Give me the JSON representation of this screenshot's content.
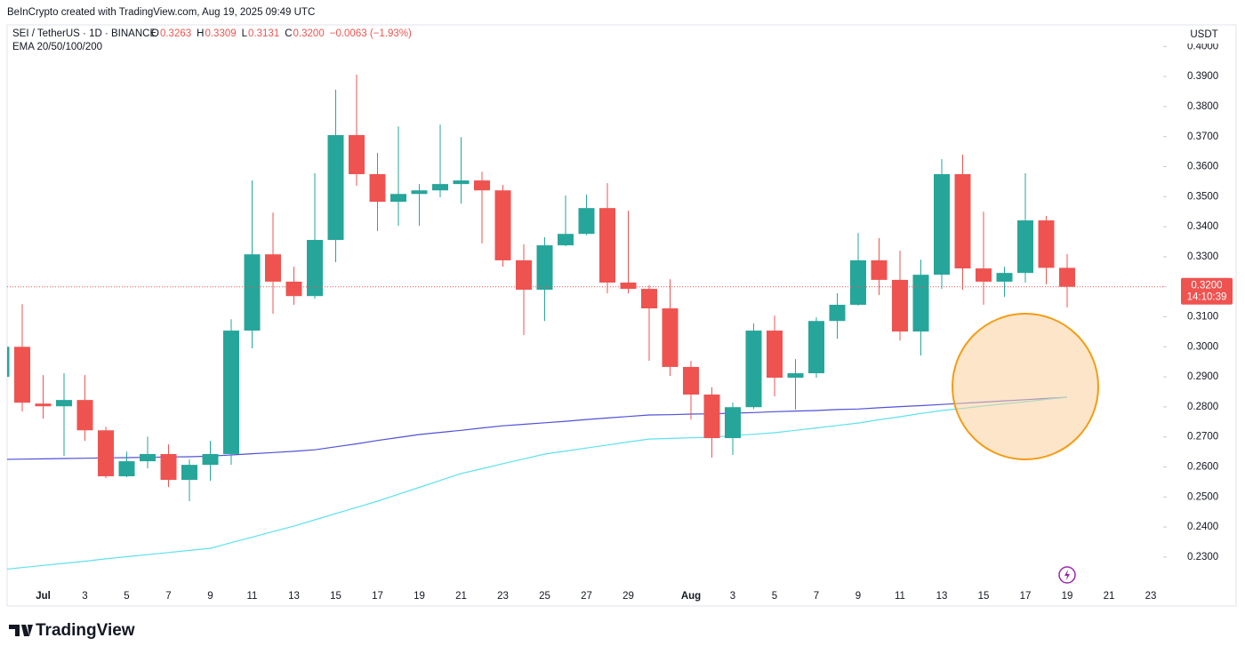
{
  "chart_data": {
    "type": "candlestick",
    "attribution": "BeInCrypto created with TradingView.com, Aug 19, 2025 09:49 UTC",
    "symbol": "SEI / TetherUS · 1D · BINANCE",
    "ohlc_legend": [
      {
        "label": "O",
        "value": "0.3263"
      },
      {
        "label": "H",
        "value": "0.3309"
      },
      {
        "label": "L",
        "value": "0.3131"
      },
      {
        "label": "C",
        "value": "0.3200"
      }
    ],
    "change": "−0.0063 (−1.93%)",
    "indicator": "EMA 20/50/100/200",
    "currency": "USDT",
    "price_label": "0.3200",
    "countdown": "14:10:39",
    "brand": "TradingView",
    "up_color": "#26a69a",
    "down_color": "#ef5350",
    "grid": false,
    "categories": [
      null,
      null,
      "Jul",
      null,
      "3",
      null,
      "5",
      null,
      "7",
      null,
      "9",
      null,
      "11",
      null,
      "13",
      null,
      "15",
      null,
      "17",
      null,
      "19",
      null,
      "21",
      null,
      "23",
      null,
      "25",
      null,
      "27",
      null,
      "29",
      null,
      null,
      "Aug",
      null,
      "3",
      null,
      "5",
      null,
      "7",
      null,
      "9",
      null,
      "11",
      null,
      "13",
      null,
      "15",
      null,
      "17",
      null,
      "19",
      null,
      "21",
      null,
      "23"
    ],
    "open": [
      0.29,
      0.3,
      0.2811,
      0.2802,
      0.2823,
      0.2722,
      0.2569,
      0.2619,
      0.2643,
      0.2557,
      0.2607,
      0.2643,
      0.3054,
      0.3308,
      0.3217,
      0.3169,
      0.3356,
      0.3705,
      0.3575,
      0.3483,
      0.3509,
      0.3521,
      0.3542,
      0.3554,
      0.3521,
      0.3288,
      0.319,
      0.3338,
      0.3376,
      0.3462,
      0.3214,
      0.3193,
      0.3128,
      0.2933,
      0.2841,
      0.2696,
      0.2799,
      0.3054,
      0.2897,
      0.2912,
      0.3086,
      0.314,
      0.3288,
      0.3223,
      0.3051,
      0.324,
      0.3575,
      0.3261,
      0.3217,
      0.3246,
      0.3421,
      0.3263,
      null,
      null,
      null,
      null
    ],
    "high": [
      0.3005,
      0.3142,
      0.2906,
      0.2912,
      0.2906,
      0.2734,
      0.2651,
      0.2701,
      0.2675,
      0.2625,
      0.2687,
      0.3092,
      0.3554,
      0.3447,
      0.3267,
      0.3578,
      0.3856,
      0.3906,
      0.3646,
      0.3734,
      0.3542,
      0.374,
      0.3698,
      0.3583,
      0.3539,
      0.3341,
      0.3365,
      0.3504,
      0.3507,
      0.3545,
      0.3453,
      0.3205,
      0.3225,
      0.2953,
      0.2865,
      0.2814,
      0.3078,
      0.3104,
      0.2959,
      0.3098,
      0.3178,
      0.3379,
      0.3362,
      0.332,
      0.329,
      0.3625,
      0.364,
      0.345,
      0.3267,
      0.3578,
      0.3436,
      0.3309,
      null,
      null,
      null,
      null
    ],
    "low": [
      0.2895,
      0.2785,
      0.2761,
      0.2637,
      0.2687,
      0.2563,
      0.2566,
      0.2595,
      0.2533,
      0.2486,
      0.2554,
      0.2607,
      0.2995,
      0.311,
      0.314,
      0.316,
      0.3282,
      0.3536,
      0.3385,
      0.3403,
      0.3403,
      0.3498,
      0.3477,
      0.3344,
      0.3267,
      0.3039,
      0.3086,
      0.3335,
      0.3372,
      0.3178,
      0.3178,
      0.2953,
      0.2903,
      0.2758,
      0.2631,
      0.264,
      0.2793,
      0.2835,
      0.2791,
      0.2897,
      0.3027,
      0.3137,
      0.3172,
      0.3021,
      0.2971,
      0.3193,
      0.319,
      0.314,
      0.3166,
      0.3214,
      0.3208,
      0.3131,
      null,
      null,
      null,
      null
    ],
    "close": [
      0.3,
      0.2814,
      0.2802,
      0.2823,
      0.2722,
      0.2569,
      0.2619,
      0.2643,
      0.2557,
      0.2607,
      0.2643,
      0.3054,
      0.3308,
      0.3217,
      0.3169,
      0.3356,
      0.3705,
      0.3575,
      0.3483,
      0.3509,
      0.3521,
      0.3542,
      0.3554,
      0.3521,
      0.3288,
      0.319,
      0.3338,
      0.3376,
      0.3462,
      0.3214,
      0.3193,
      0.3128,
      0.2933,
      0.2841,
      0.2696,
      0.2799,
      0.3054,
      0.2897,
      0.2912,
      0.3086,
      0.314,
      0.3288,
      0.3223,
      0.3051,
      0.324,
      0.3575,
      0.3261,
      0.3217,
      0.3246,
      0.3421,
      0.3263,
      0.32,
      null,
      null,
      null,
      null
    ],
    "ema_lines": [
      {
        "color": "#5050d8",
        "values": [
          0.2625,
          0.2626,
          0.2627,
          0.2628,
          0.2629,
          0.263,
          0.2631,
          0.2632,
          0.2633,
          0.2634,
          0.2636,
          0.264,
          0.2644,
          0.2648,
          0.2652,
          0.2657,
          0.2667,
          0.2677,
          0.2688,
          0.2698,
          0.2708,
          0.2715,
          0.2722,
          0.273,
          0.2737,
          0.2742,
          0.2747,
          0.2752,
          0.2758,
          0.2763,
          0.2768,
          0.2773,
          0.2774,
          0.2776,
          0.2777,
          0.2779,
          0.2781,
          0.2784,
          0.2786,
          0.2788,
          0.2791,
          0.2793,
          0.2797,
          0.2801,
          0.2804,
          0.2808,
          0.2812,
          0.2816,
          0.282,
          0.2824,
          0.2828,
          0.2832,
          null,
          null,
          null,
          null
        ]
      },
      {
        "color": "#5ce1ee",
        "values": [
          0.2258,
          0.2265,
          0.2272,
          0.2279,
          0.2286,
          0.2294,
          0.2301,
          0.2308,
          0.2315,
          0.2322,
          0.2329,
          0.2348,
          0.2366,
          0.2385,
          0.2403,
          0.2424,
          0.2445,
          0.2465,
          0.2486,
          0.2509,
          0.2532,
          0.2555,
          0.2578,
          0.2594,
          0.2611,
          0.2627,
          0.2643,
          0.2653,
          0.2663,
          0.2673,
          0.2683,
          0.2693,
          0.2695,
          0.2697,
          0.2699,
          0.2704,
          0.2709,
          0.2714,
          0.2722,
          0.273,
          0.2738,
          0.2746,
          0.2757,
          0.2767,
          0.2778,
          0.2788,
          0.2795,
          0.2803,
          0.281,
          0.2817,
          0.2825,
          0.2832,
          null,
          null,
          null,
          null
        ]
      }
    ],
    "ylim": [
      0.2202,
      0.4072
    ],
    "yticks": [
      {
        "value": 0.23,
        "label": "0.2300"
      },
      {
        "value": 0.24,
        "label": "0.2400"
      },
      {
        "value": 0.25,
        "label": "0.2500"
      },
      {
        "value": 0.26,
        "label": "0.2600"
      },
      {
        "value": 0.27,
        "label": "0.2700"
      },
      {
        "value": 0.28,
        "label": "0.2800"
      },
      {
        "value": 0.29,
        "label": "0.2900"
      },
      {
        "value": 0.3,
        "label": "0.3000"
      },
      {
        "value": 0.31,
        "label": "0.3100"
      },
      {
        "value": 0.32,
        "label": "0.3200"
      },
      {
        "value": 0.33,
        "label": "0.3300"
      },
      {
        "value": 0.34,
        "label": "0.3400"
      },
      {
        "value": 0.35,
        "label": "0.3500"
      },
      {
        "value": 0.36,
        "label": "0.3600"
      },
      {
        "value": 0.37,
        "label": "0.3700"
      },
      {
        "value": 0.38,
        "label": "0.3800"
      },
      {
        "value": 0.39,
        "label": "0.3900"
      },
      {
        "value": 0.4,
        "label": "0.4000"
      }
    ]
  }
}
